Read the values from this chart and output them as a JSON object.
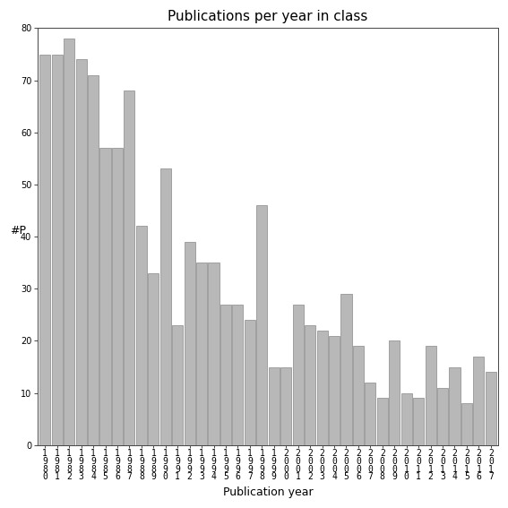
{
  "title": "Publications per year in class",
  "xlabel": "Publication year",
  "ylabel": "#P",
  "years": [
    "1980",
    "1981",
    "1982",
    "1983",
    "1984",
    "1985",
    "1986",
    "1987",
    "1988",
    "1989",
    "1990",
    "1991",
    "1992",
    "1993",
    "1994",
    "1995",
    "1996",
    "1997",
    "1998",
    "1999",
    "2000",
    "2001",
    "2002",
    "2003",
    "2004",
    "2005",
    "2006",
    "2007",
    "2008",
    "2009",
    "2010",
    "2011",
    "2012",
    "2013",
    "2014",
    "2015",
    "2016",
    "2017"
  ],
  "values": [
    75,
    75,
    78,
    74,
    71,
    57,
    57,
    68,
    42,
    33,
    53,
    23,
    39,
    35,
    35,
    27,
    27,
    24,
    46,
    15,
    15,
    27,
    23,
    22,
    21,
    29,
    19,
    12,
    9,
    20,
    10,
    9,
    19,
    11,
    15,
    8,
    17,
    14
  ],
  "bar_color": "#b8b8b8",
  "bar_edgecolor": "#888888",
  "ylim": [
    0,
    80
  ],
  "yticks": [
    0,
    10,
    20,
    30,
    40,
    50,
    60,
    70,
    80
  ],
  "background_color": "#ffffff",
  "title_fontsize": 11,
  "label_fontsize": 9,
  "tick_fontsize": 7
}
